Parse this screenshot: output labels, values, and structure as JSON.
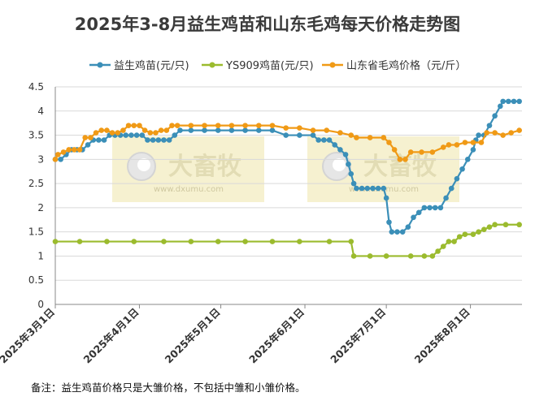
{
  "title": "2025年3-8月益生鸡苗和山东毛鸡每天价格走势图",
  "note": "备注：益生鸡苗价格只是大雏价格，不包括中雏和小雏价格。",
  "watermark": {
    "brand": "大畜牧",
    "url": "www.dxumu.com"
  },
  "chart_data": {
    "type": "line",
    "title": "2025年3-8月益生鸡苗和山东毛鸡每天价格走势图",
    "ylim": [
      0,
      4.5
    ],
    "yticks": [
      "0",
      "0.5",
      "1",
      "1.5",
      "2",
      "2.5",
      "3",
      "3.5",
      "4",
      "4.5"
    ],
    "xlim": [
      "2025-03-01",
      "2025-08-20"
    ],
    "xticks": [
      {
        "date": "2025-03-01",
        "label": "2025年3月1日"
      },
      {
        "date": "2025-04-01",
        "label": "2025年4月1日"
      },
      {
        "date": "2025-05-01",
        "label": "2025年5月1日"
      },
      {
        "date": "2025-06-01",
        "label": "2025年6月1日"
      },
      {
        "date": "2025-07-01",
        "label": "2025年7月1日"
      },
      {
        "date": "2025-08-01",
        "label": "2025年8月1日"
      }
    ],
    "legend_position": "top",
    "grid": "horizontal",
    "series": [
      {
        "name": "益生鸡苗(元/只)",
        "color": "#3b8fb8",
        "points": [
          [
            "2025-03-01",
            3.0
          ],
          [
            "2025-03-03",
            3.0
          ],
          [
            "2025-03-05",
            3.1
          ],
          [
            "2025-03-07",
            3.2
          ],
          [
            "2025-03-09",
            3.2
          ],
          [
            "2025-03-11",
            3.2
          ],
          [
            "2025-03-13",
            3.3
          ],
          [
            "2025-03-15",
            3.4
          ],
          [
            "2025-03-17",
            3.4
          ],
          [
            "2025-03-19",
            3.4
          ],
          [
            "2025-03-21",
            3.5
          ],
          [
            "2025-03-23",
            3.5
          ],
          [
            "2025-03-25",
            3.5
          ],
          [
            "2025-03-27",
            3.5
          ],
          [
            "2025-03-29",
            3.5
          ],
          [
            "2025-03-31",
            3.5
          ],
          [
            "2025-04-02",
            3.5
          ],
          [
            "2025-04-04",
            3.4
          ],
          [
            "2025-04-06",
            3.4
          ],
          [
            "2025-04-08",
            3.4
          ],
          [
            "2025-04-10",
            3.4
          ],
          [
            "2025-04-12",
            3.4
          ],
          [
            "2025-04-14",
            3.5
          ],
          [
            "2025-04-16",
            3.6
          ],
          [
            "2025-04-20",
            3.6
          ],
          [
            "2025-04-25",
            3.6
          ],
          [
            "2025-04-30",
            3.6
          ],
          [
            "2025-05-05",
            3.6
          ],
          [
            "2025-05-10",
            3.6
          ],
          [
            "2025-05-15",
            3.6
          ],
          [
            "2025-05-20",
            3.6
          ],
          [
            "2025-05-25",
            3.5
          ],
          [
            "2025-05-30",
            3.5
          ],
          [
            "2025-06-04",
            3.5
          ],
          [
            "2025-06-06",
            3.4
          ],
          [
            "2025-06-08",
            3.4
          ],
          [
            "2025-06-10",
            3.4
          ],
          [
            "2025-06-12",
            3.3
          ],
          [
            "2025-06-14",
            3.2
          ],
          [
            "2025-06-16",
            3.1
          ],
          [
            "2025-06-17",
            2.9
          ],
          [
            "2025-06-18",
            2.7
          ],
          [
            "2025-06-19",
            2.5
          ],
          [
            "2025-06-20",
            2.4
          ],
          [
            "2025-06-22",
            2.4
          ],
          [
            "2025-06-24",
            2.4
          ],
          [
            "2025-06-26",
            2.4
          ],
          [
            "2025-06-28",
            2.4
          ],
          [
            "2025-06-30",
            2.4
          ],
          [
            "2025-07-01",
            2.2
          ],
          [
            "2025-07-02",
            1.7
          ],
          [
            "2025-07-03",
            1.5
          ],
          [
            "2025-07-05",
            1.5
          ],
          [
            "2025-07-07",
            1.5
          ],
          [
            "2025-07-09",
            1.6
          ],
          [
            "2025-07-11",
            1.8
          ],
          [
            "2025-07-13",
            1.9
          ],
          [
            "2025-07-15",
            2.0
          ],
          [
            "2025-07-17",
            2.0
          ],
          [
            "2025-07-19",
            2.0
          ],
          [
            "2025-07-21",
            2.0
          ],
          [
            "2025-07-23",
            2.2
          ],
          [
            "2025-07-25",
            2.4
          ],
          [
            "2025-07-27",
            2.6
          ],
          [
            "2025-07-29",
            2.8
          ],
          [
            "2025-07-31",
            3.0
          ],
          [
            "2025-08-02",
            3.2
          ],
          [
            "2025-08-03",
            3.4
          ],
          [
            "2025-08-04",
            3.5
          ],
          [
            "2025-08-06",
            3.5
          ],
          [
            "2025-08-08",
            3.7
          ],
          [
            "2025-08-10",
            3.9
          ],
          [
            "2025-08-12",
            4.1
          ],
          [
            "2025-08-13",
            4.2
          ],
          [
            "2025-08-15",
            4.2
          ],
          [
            "2025-08-17",
            4.2
          ],
          [
            "2025-08-19",
            4.2
          ]
        ]
      },
      {
        "name": "YS909鸡苗(元/只)",
        "color": "#9bbb2e",
        "points": [
          [
            "2025-03-01",
            1.3
          ],
          [
            "2025-03-10",
            1.3
          ],
          [
            "2025-03-20",
            1.3
          ],
          [
            "2025-03-30",
            1.3
          ],
          [
            "2025-04-10",
            1.3
          ],
          [
            "2025-04-20",
            1.3
          ],
          [
            "2025-04-30",
            1.3
          ],
          [
            "2025-05-10",
            1.3
          ],
          [
            "2025-05-20",
            1.3
          ],
          [
            "2025-05-30",
            1.3
          ],
          [
            "2025-06-10",
            1.3
          ],
          [
            "2025-06-18",
            1.3
          ],
          [
            "2025-06-19",
            1.0
          ],
          [
            "2025-06-25",
            1.0
          ],
          [
            "2025-07-01",
            1.0
          ],
          [
            "2025-07-10",
            1.0
          ],
          [
            "2025-07-15",
            1.0
          ],
          [
            "2025-07-18",
            1.0
          ],
          [
            "2025-07-20",
            1.1
          ],
          [
            "2025-07-22",
            1.2
          ],
          [
            "2025-07-24",
            1.3
          ],
          [
            "2025-07-26",
            1.3
          ],
          [
            "2025-07-28",
            1.4
          ],
          [
            "2025-07-30",
            1.45
          ],
          [
            "2025-08-02",
            1.45
          ],
          [
            "2025-08-04",
            1.5
          ],
          [
            "2025-08-06",
            1.55
          ],
          [
            "2025-08-08",
            1.6
          ],
          [
            "2025-08-10",
            1.65
          ],
          [
            "2025-08-14",
            1.65
          ],
          [
            "2025-08-19",
            1.65
          ]
        ]
      },
      {
        "name": "山东省毛鸡价格（元/斤）",
        "color": "#f09a16",
        "points": [
          [
            "2025-03-01",
            3.0
          ],
          [
            "2025-03-02",
            3.1
          ],
          [
            "2025-03-04",
            3.15
          ],
          [
            "2025-03-06",
            3.2
          ],
          [
            "2025-03-08",
            3.2
          ],
          [
            "2025-03-10",
            3.2
          ],
          [
            "2025-03-12",
            3.45
          ],
          [
            "2025-03-14",
            3.45
          ],
          [
            "2025-03-16",
            3.55
          ],
          [
            "2025-03-18",
            3.6
          ],
          [
            "2025-03-20",
            3.6
          ],
          [
            "2025-03-22",
            3.55
          ],
          [
            "2025-03-24",
            3.55
          ],
          [
            "2025-03-26",
            3.6
          ],
          [
            "2025-03-28",
            3.7
          ],
          [
            "2025-03-30",
            3.7
          ],
          [
            "2025-04-01",
            3.7
          ],
          [
            "2025-04-03",
            3.6
          ],
          [
            "2025-04-05",
            3.55
          ],
          [
            "2025-04-07",
            3.55
          ],
          [
            "2025-04-09",
            3.6
          ],
          [
            "2025-04-11",
            3.6
          ],
          [
            "2025-04-13",
            3.7
          ],
          [
            "2025-04-15",
            3.7
          ],
          [
            "2025-04-20",
            3.7
          ],
          [
            "2025-04-25",
            3.7
          ],
          [
            "2025-04-30",
            3.7
          ],
          [
            "2025-05-05",
            3.7
          ],
          [
            "2025-05-10",
            3.7
          ],
          [
            "2025-05-15",
            3.7
          ],
          [
            "2025-05-20",
            3.7
          ],
          [
            "2025-05-25",
            3.65
          ],
          [
            "2025-05-30",
            3.65
          ],
          [
            "2025-06-04",
            3.6
          ],
          [
            "2025-06-09",
            3.6
          ],
          [
            "2025-06-14",
            3.55
          ],
          [
            "2025-06-18",
            3.5
          ],
          [
            "2025-06-20",
            3.45
          ],
          [
            "2025-06-25",
            3.45
          ],
          [
            "2025-06-30",
            3.45
          ],
          [
            "2025-07-02",
            3.35
          ],
          [
            "2025-07-04",
            3.2
          ],
          [
            "2025-07-06",
            3.0
          ],
          [
            "2025-07-08",
            3.0
          ],
          [
            "2025-07-10",
            3.15
          ],
          [
            "2025-07-14",
            3.15
          ],
          [
            "2025-07-18",
            3.15
          ],
          [
            "2025-07-22",
            3.25
          ],
          [
            "2025-07-24",
            3.3
          ],
          [
            "2025-07-27",
            3.3
          ],
          [
            "2025-07-30",
            3.35
          ],
          [
            "2025-08-02",
            3.35
          ],
          [
            "2025-08-05",
            3.35
          ],
          [
            "2025-08-07",
            3.55
          ],
          [
            "2025-08-10",
            3.55
          ],
          [
            "2025-08-13",
            3.5
          ],
          [
            "2025-08-16",
            3.55
          ],
          [
            "2025-08-19",
            3.6
          ]
        ]
      }
    ]
  }
}
